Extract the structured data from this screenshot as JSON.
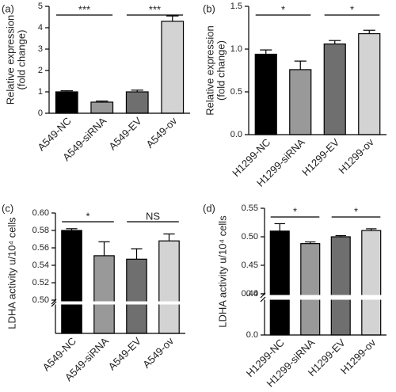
{
  "chart_data": [
    {
      "type": "bar",
      "panel_label": "(a)",
      "ylabel": [
        "Relative expression",
        "(fold change)"
      ],
      "categories": [
        "A549-NC",
        "A549-siRNA",
        "A549-EV",
        "A549-ov"
      ],
      "values": [
        1.0,
        0.52,
        1.0,
        4.3
      ],
      "errors": [
        0.05,
        0.05,
        0.08,
        0.25
      ],
      "colors": [
        "#000000",
        "#999999",
        "#6f6f6f",
        "#d3d3d3"
      ],
      "ylim": [
        0,
        5
      ],
      "yticks": [
        0,
        1,
        2,
        3,
        4,
        5
      ],
      "annotations": [
        "***",
        "***"
      ]
    },
    {
      "type": "bar",
      "panel_label": "(b)",
      "ylabel": [
        "Relative expression",
        "(fold change)"
      ],
      "categories": [
        "H1299-NC",
        "H1299-siRNA",
        "H1299-EV",
        "H1299-ov"
      ],
      "values": [
        0.94,
        0.76,
        1.06,
        1.18
      ],
      "errors": [
        0.05,
        0.1,
        0.04,
        0.04
      ],
      "colors": [
        "#000000",
        "#999999",
        "#6f6f6f",
        "#d3d3d3"
      ],
      "ylim": [
        0,
        1.5
      ],
      "yticks": [
        {
          "value": 0,
          "label": "0.0"
        },
        0.5,
        {
          "value": 1,
          "label": "1.0"
        },
        1.5
      ],
      "annotations": [
        "*",
        "*"
      ]
    },
    {
      "type": "bar",
      "panel_label": "(c)",
      "ylabel": [
        "LDHA activity u/10⁴ cells"
      ],
      "categories": [
        "A549-NC",
        "A549-siRNA",
        "A549-EV",
        "A549-ov"
      ],
      "values": [
        0.58,
        0.551,
        0.547,
        0.568
      ],
      "errors": [
        0.002,
        0.016,
        0.012,
        0.008
      ],
      "colors": [
        "#000000",
        "#999999",
        "#6f6f6f",
        "#d3d3d3"
      ],
      "ylim": [
        0.5,
        0.6
      ],
      "yticks": [
        {
          "value": 0.5,
          "label": "0.50"
        },
        0.52,
        0.54,
        0.56,
        0.58,
        {
          "value": 0.6,
          "label": "0.60"
        }
      ],
      "lower_ylim": [
        0,
        0.5
      ],
      "annotations": [
        "*",
        "NS"
      ]
    },
    {
      "type": "bar",
      "panel_label": "(d)",
      "ylabel": [
        "LDHA activity u/10⁴ cells"
      ],
      "categories": [
        "H1299-NC",
        "H1299-siRNA",
        "H1299-EV",
        "H1299-ov"
      ],
      "values": [
        0.51,
        0.488,
        0.5,
        0.511
      ],
      "errors": [
        0.013,
        0.003,
        0.002,
        0.003
      ],
      "colors": [
        "#000000",
        "#999999",
        "#6f6f6f",
        "#d3d3d3"
      ],
      "ylim": [
        0.4,
        0.55
      ],
      "yticks": [
        {
          "value": 0.4,
          "label": "0.40"
        },
        0.45,
        {
          "value": 0.5,
          "label": "0.50"
        },
        0.55
      ],
      "lower_ylim": [
        0,
        0.4
      ],
      "lower_yticks": [
        {
          "value": 0,
          "label": "0.0"
        },
        0.4
      ],
      "annotations": [
        "*",
        "*"
      ]
    }
  ]
}
